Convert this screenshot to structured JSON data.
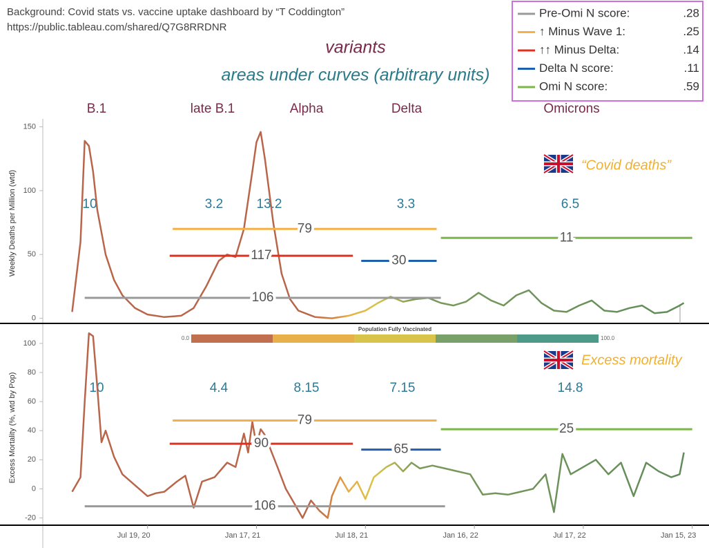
{
  "header": {
    "title": "Background: Covid stats vs. vaccine uptake dashboard by “T Coddington”",
    "url": "https://public.tableau.com/shared/Q7G8RRDNR",
    "variants_label": "variants",
    "areas_label": "areas under curves (arbitrary units)"
  },
  "legend": [
    {
      "name": "Pre-Omi N score:",
      "color": "#999999",
      "score": ".28"
    },
    {
      "name": "↑ Minus Wave 1:",
      "color": "#f5b04a",
      "score": ".25"
    },
    {
      "name": "↑↑ Minus Delta:",
      "color": "#e03020",
      "score": ".14"
    },
    {
      "name": "Delta N score:",
      "color": "#1f5fb0",
      "score": ".11"
    },
    {
      "name": "Omi N score:",
      "color": "#7ab648",
      "score": ".59"
    }
  ],
  "variants": [
    "B.1",
    "late B.1",
    "Alpha",
    "Delta",
    "Omicrons"
  ],
  "colorbar": {
    "title": "Population Fully Vaccinated",
    "min_label": "0.0",
    "max_label": "100.0",
    "colors": [
      "#c0704f",
      "#e8b04a",
      "#d8c44a",
      "#7aa06a",
      "#4e9a88"
    ]
  },
  "chart_data": [
    {
      "type": "line",
      "title": "“Covid deaths”",
      "y_label": "Weekly Deaths per Million (wtd)",
      "xlim": [
        "2020-01-26",
        "2023-02-12"
      ],
      "ylim": [
        -4,
        153
      ],
      "yticks": [
        0,
        50,
        100,
        150
      ],
      "x": [
        "2020-03-15",
        "2020-03-29",
        "2020-04-05",
        "2020-04-12",
        "2020-04-19",
        "2020-04-26",
        "2020-05-10",
        "2020-05-24",
        "2020-06-07",
        "2020-06-28",
        "2020-07-19",
        "2020-08-16",
        "2020-09-13",
        "2020-10-04",
        "2020-10-25",
        "2020-11-15",
        "2020-11-29",
        "2020-12-13",
        "2020-12-27",
        "2021-01-10",
        "2021-01-17",
        "2021-01-24",
        "2021-01-31",
        "2021-02-14",
        "2021-02-28",
        "2021-03-14",
        "2021-03-28",
        "2021-04-25",
        "2021-05-23",
        "2021-06-20",
        "2021-07-18",
        "2021-08-08",
        "2021-08-29",
        "2021-09-19",
        "2021-10-10",
        "2021-10-31",
        "2021-11-21",
        "2021-12-12",
        "2022-01-02",
        "2022-01-23",
        "2022-02-13",
        "2022-03-06",
        "2022-03-27",
        "2022-04-17",
        "2022-05-08",
        "2022-05-29",
        "2022-06-19",
        "2022-07-10",
        "2022-07-31",
        "2022-08-21",
        "2022-09-11",
        "2022-10-02",
        "2022-10-23",
        "2022-11-13",
        "2022-12-04",
        "2022-12-25",
        "2023-01-01"
      ],
      "values": [
        5,
        60,
        139,
        135,
        115,
        85,
        50,
        30,
        18,
        8,
        3,
        1,
        2,
        8,
        25,
        45,
        50,
        48,
        70,
        115,
        138,
        146,
        125,
        75,
        35,
        15,
        6,
        1,
        0,
        2,
        6,
        12,
        17,
        13,
        15,
        16,
        12,
        10,
        13,
        20,
        14,
        10,
        18,
        22,
        12,
        6,
        5,
        10,
        14,
        6,
        5,
        8,
        10,
        4,
        5,
        10,
        12
      ],
      "area_labels": [
        10,
        3.2,
        13.2,
        3.3,
        6.5
      ],
      "level_lines": [
        {
          "label": 79,
          "color": "#f5b04a",
          "y": 70,
          "from": "2020-08-30",
          "to": "2021-11-14"
        },
        {
          "label": 117,
          "color": "#e03020",
          "y": 49,
          "from": "2020-08-25",
          "to": "2021-06-27"
        },
        {
          "label": 30,
          "color": "#1f5fb0",
          "y": 45,
          "from": "2021-07-11",
          "to": "2021-11-14"
        },
        {
          "label": 106,
          "color": "#999999",
          "y": 16,
          "from": "2020-04-05",
          "to": "2021-11-21"
        },
        {
          "label": 11,
          "color": "#7ab648",
          "y": 63,
          "from": "2021-11-21",
          "to": "2023-01-15"
        }
      ]
    },
    {
      "type": "line",
      "title": "Excess mortality",
      "y_label": "Excess Mortality (%, wtd by Pop)",
      "xlim": [
        "2020-01-26",
        "2023-02-12"
      ],
      "ylim": [
        -25,
        109
      ],
      "yticks": [
        -20,
        0,
        20,
        40,
        60,
        80,
        100
      ],
      "xticks": [
        {
          "value": "2020-07-19",
          "label": "Jul 19, 20"
        },
        {
          "value": "2021-01-17",
          "label": "Jan 17, 21"
        },
        {
          "value": "2021-07-18",
          "label": "Jul 18, 21"
        },
        {
          "value": "2022-01-16",
          "label": "Jan 16, 22"
        },
        {
          "value": "2022-07-17",
          "label": "Jul 17, 22"
        },
        {
          "value": "2023-01-15",
          "label": "Jan 15, 23"
        }
      ],
      "x": [
        "2020-03-15",
        "2020-03-29",
        "2020-04-05",
        "2020-04-12",
        "2020-04-19",
        "2020-04-26",
        "2020-05-03",
        "2020-05-10",
        "2020-05-24",
        "2020-06-07",
        "2020-06-21",
        "2020-07-05",
        "2020-07-19",
        "2020-08-02",
        "2020-08-16",
        "2020-09-06",
        "2020-09-20",
        "2020-10-04",
        "2020-10-18",
        "2020-11-08",
        "2020-11-29",
        "2020-12-13",
        "2020-12-27",
        "2021-01-03",
        "2021-01-10",
        "2021-01-17",
        "2021-01-24",
        "2021-01-31",
        "2021-02-21",
        "2021-03-07",
        "2021-03-21",
        "2021-04-04",
        "2021-04-18",
        "2021-05-02",
        "2021-05-16",
        "2021-05-23",
        "2021-06-06",
        "2021-06-20",
        "2021-07-04",
        "2021-07-18",
        "2021-08-01",
        "2021-08-22",
        "2021-09-05",
        "2021-09-19",
        "2021-10-03",
        "2021-10-17",
        "2021-11-07",
        "2021-11-28",
        "2021-12-19",
        "2022-01-09",
        "2022-01-30",
        "2022-02-20",
        "2022-03-13",
        "2022-04-03",
        "2022-04-24",
        "2022-05-15",
        "2022-05-29",
        "2022-06-12",
        "2022-06-26",
        "2022-07-17",
        "2022-08-07",
        "2022-08-28",
        "2022-09-18",
        "2022-10-09",
        "2022-10-30",
        "2022-11-20",
        "2022-12-11",
        "2022-12-25",
        "2023-01-01"
      ],
      "values": [
        -2,
        8,
        60,
        107,
        105,
        70,
        32,
        40,
        22,
        10,
        5,
        0,
        -5,
        -3,
        -2,
        5,
        9,
        -13,
        5,
        8,
        18,
        15,
        38,
        25,
        46,
        30,
        41,
        37,
        15,
        0,
        -10,
        -20,
        -8,
        -15,
        -20,
        -5,
        8,
        -2,
        5,
        -7,
        8,
        15,
        18,
        12,
        18,
        14,
        16,
        14,
        12,
        10,
        -4,
        -3,
        -4,
        -2,
        0,
        10,
        -16,
        24,
        10,
        15,
        20,
        10,
        18,
        -5,
        18,
        12,
        8,
        10,
        25
      ],
      "area_labels": [
        10,
        4.4,
        8.15,
        7.15,
        14.8
      ],
      "level_lines": [
        {
          "label": 79,
          "color": "#f5b04a",
          "y": 47,
          "from": "2020-08-30",
          "to": "2021-11-14"
        },
        {
          "label": 90,
          "color": "#e03020",
          "y": 31,
          "from": "2020-08-25",
          "to": "2021-06-27"
        },
        {
          "label": 65,
          "color": "#1f5fb0",
          "y": 27,
          "from": "2021-07-11",
          "to": "2021-11-21"
        },
        {
          "label": 106,
          "color": "#999999",
          "y": -12,
          "from": "2020-04-05",
          "to": "2021-11-28"
        },
        {
          "label": 25,
          "color": "#7ab648",
          "y": 41,
          "from": "2021-11-21",
          "to": "2023-01-15"
        }
      ]
    }
  ]
}
